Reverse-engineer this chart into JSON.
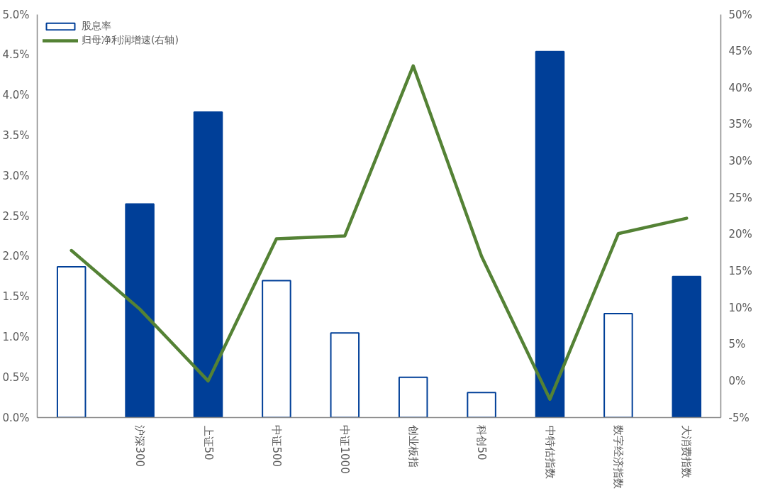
{
  "chart_data": {
    "type": "bar",
    "categories": [
      null,
      "沪深300",
      "上证50",
      "中证500",
      "中证1000",
      "创业板指",
      "科创50",
      "中特估指数",
      "数字经济指数",
      "大消费指数"
    ],
    "series": [
      {
        "name": "股息率",
        "color": "#003f98",
        "colors": [
          "#ffffff",
          "#003f98",
          "#003f98",
          "#ffffff",
          "#ffffff",
          "#ffffff",
          "#ffffff",
          "#003f98",
          "#ffffff",
          "#003f98"
        ],
        "values": [
          1.87,
          2.65,
          3.79,
          1.7,
          1.05,
          0.5,
          0.31,
          4.54,
          1.29,
          1.75
        ]
      },
      {
        "name": "归母净利润增速(右轴)",
        "type": "line",
        "axis": "y2",
        "color": "#548235",
        "values": [
          17.8,
          9.8,
          0.0,
          19.4,
          19.8,
          43.0,
          17.0,
          -2.5,
          20.1,
          22.2
        ]
      }
    ],
    "ylim": [
      0,
      5
    ],
    "yticks": [
      {
        "value": 0,
        "label": "0.0%"
      },
      {
        "value": 0.5,
        "label": "0.5%"
      },
      {
        "value": 1,
        "label": "1.0%"
      },
      {
        "value": 1.5,
        "label": "1.5%"
      },
      {
        "value": 2,
        "label": "2.0%"
      },
      {
        "value": 2.5,
        "label": "2.5%"
      },
      {
        "value": 3,
        "label": "3.0%"
      },
      {
        "value": 3.5,
        "label": "3.5%"
      },
      {
        "value": 4,
        "label": "4.0%"
      },
      {
        "value": 4.5,
        "label": "4.5%"
      },
      {
        "value": 5,
        "label": "5.0%"
      }
    ],
    "y2lim": [
      -5,
      50
    ],
    "y2ticks": [
      {
        "value": -5,
        "label": "-5%"
      },
      {
        "value": 0,
        "label": "0%"
      },
      {
        "value": 5,
        "label": "5%"
      },
      {
        "value": 10,
        "label": "10%"
      },
      {
        "value": 15,
        "label": "15%"
      },
      {
        "value": 20,
        "label": "20%"
      },
      {
        "value": 25,
        "label": "25%"
      },
      {
        "value": 30,
        "label": "30%"
      },
      {
        "value": 35,
        "label": "35%"
      },
      {
        "value": 40,
        "label": "40%"
      },
      {
        "value": 45,
        "label": "45%"
      },
      {
        "value": 50,
        "label": "50%"
      }
    ],
    "legend": "top left",
    "line_style": "solid",
    "marker": "none"
  }
}
